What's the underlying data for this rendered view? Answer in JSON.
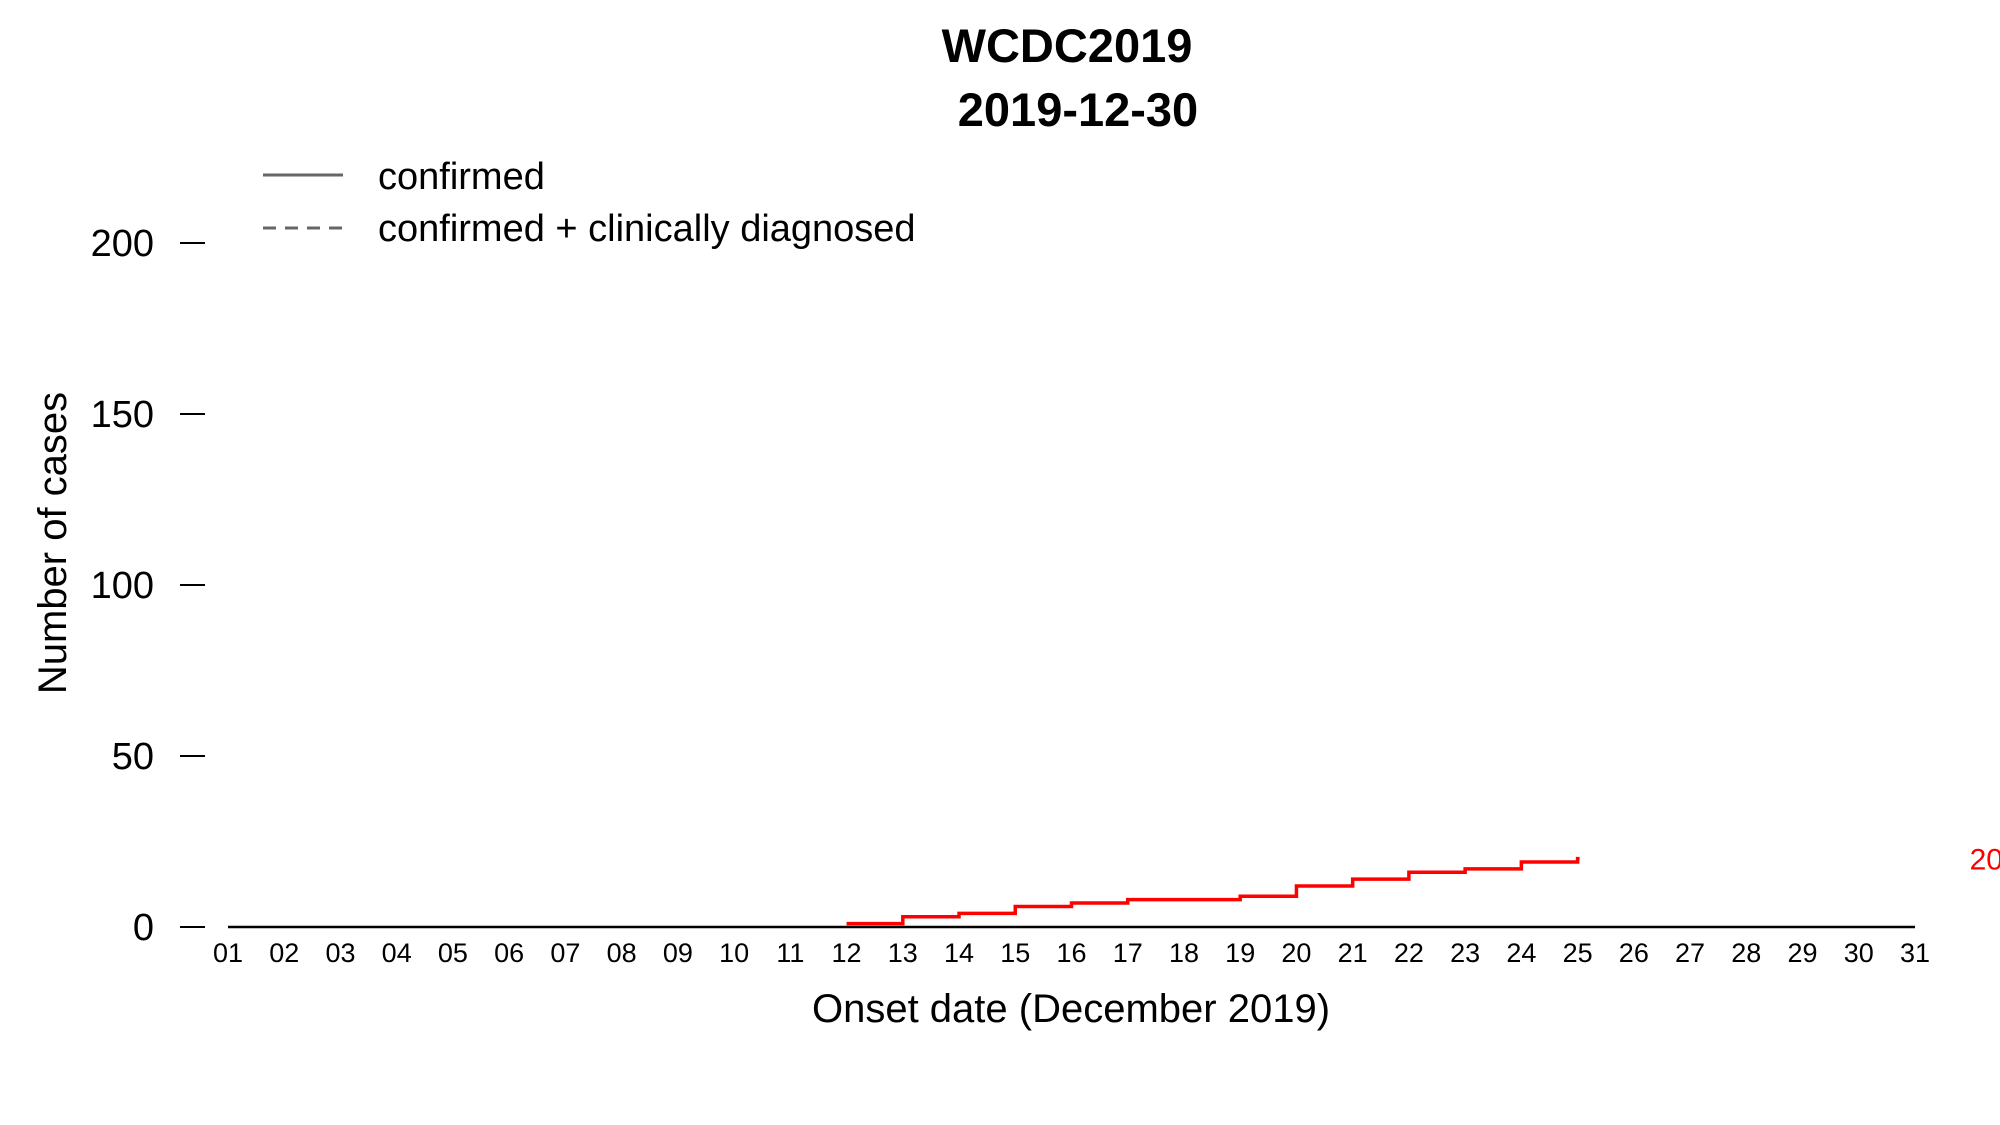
{
  "chart_data": {
    "type": "line",
    "title": "WCDC2019",
    "subtitle": "2019-12-30",
    "xlabel": "Onset date (December 2019)",
    "ylabel": "Number of cases",
    "x_categories": [
      "01",
      "02",
      "03",
      "04",
      "05",
      "06",
      "07",
      "08",
      "09",
      "10",
      "11",
      "12",
      "13",
      "14",
      "15",
      "16",
      "17",
      "18",
      "19",
      "20",
      "21",
      "22",
      "23",
      "24",
      "25",
      "26",
      "27",
      "28",
      "29",
      "30",
      "31"
    ],
    "ylim": [
      0,
      200
    ],
    "yticks": [
      "0",
      "50",
      "100",
      "150",
      "200"
    ],
    "grid": false,
    "legend": {
      "placement": "top-left",
      "entries": [
        {
          "label": "confirmed",
          "style": "solid"
        },
        {
          "label": "confirmed + clinically diagnosed",
          "style": "dashed"
        }
      ]
    },
    "baseline": {
      "x_start": 1,
      "x_end": 31,
      "y": 0,
      "color": "#000000"
    },
    "series": [
      {
        "style": "step",
        "color": "#ff0000",
        "x": [
          12,
          13,
          14,
          15,
          16,
          17,
          18,
          19,
          20,
          21,
          22,
          23,
          24,
          25
        ],
        "values": [
          1,
          3,
          4,
          6,
          7,
          8,
          8,
          9,
          12,
          14,
          16,
          17,
          19,
          20
        ]
      }
    ],
    "annotations": [
      {
        "text": "20",
        "x": 31,
        "y": 20,
        "color": "#ff0000"
      }
    ],
    "legend_color": "#666666"
  }
}
